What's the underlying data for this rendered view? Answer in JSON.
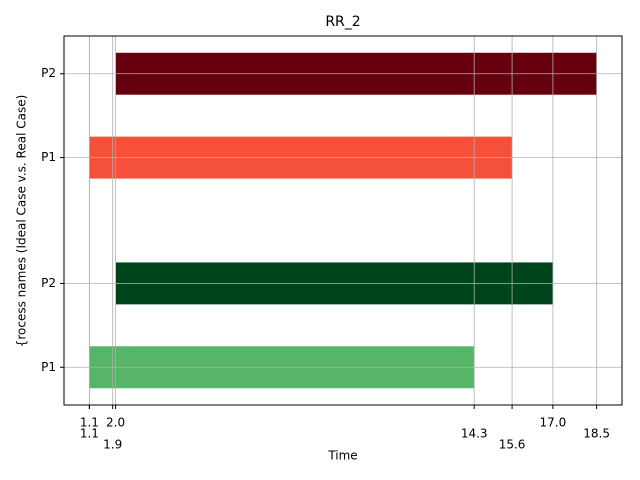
{
  "chart_data": {
    "type": "gantt",
    "title": "RR_2",
    "xlabel": "Time",
    "ylabel": "{rocess names (Ideal Case v.s. Real Case)",
    "xlim": [
      0.23,
      19.37
    ],
    "ylim": [
      0.55,
      4.95
    ],
    "xticks": [
      1.1,
      1.1,
      {
        "value": 2,
        "label": "2.0"
      },
      1.9,
      14.3,
      15.6,
      {
        "value": 17,
        "label": "17.0"
      },
      18.5
    ],
    "yticks": [
      {
        "value": 1,
        "label": "P1"
      },
      {
        "value": 2,
        "label": "P2"
      },
      {
        "value": 3.5,
        "label": "P1"
      },
      {
        "value": 4.5,
        "label": "P2"
      }
    ],
    "grid": true,
    "bars": [
      {
        "y": 1,
        "start": 1.1,
        "end": 14.3,
        "color": "#57b567"
      },
      {
        "y": 2,
        "start": 2.0,
        "end": 17.0,
        "color": "#00441b"
      },
      {
        "y": 3.5,
        "start": 1.1,
        "end": 15.6,
        "color": "#f4503a"
      },
      {
        "y": 4.5,
        "start": 2.0,
        "end": 18.5,
        "color": "#67000d"
      }
    ]
  }
}
